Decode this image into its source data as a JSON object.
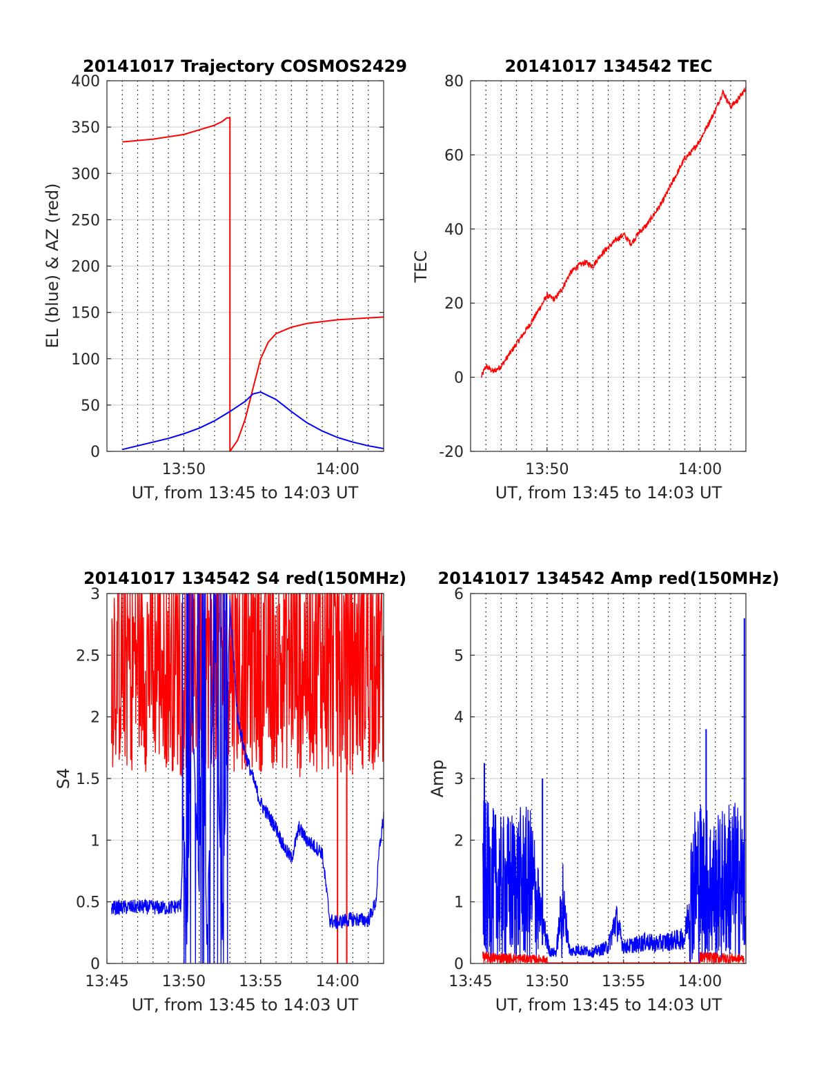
{
  "colors": {
    "red": "#ff0000",
    "blue": "#0000ff",
    "grid": "#dcdcdc",
    "axis": "#262626"
  },
  "chart_data": [
    {
      "type": "line",
      "title": "20141017 Trajectory COSMOS2429",
      "xlabel": "UT, from 13:45 to 14:03 UT",
      "ylabel": "EL (blue) & AZ (red)",
      "xlim_minutes": [
        0,
        18
      ],
      "ylim": [
        0,
        400
      ],
      "yticks": [
        "0",
        "50",
        "100",
        "150",
        "200",
        "250",
        "300",
        "350",
        "400"
      ],
      "xtick_labels": [
        {
          "minute": 5,
          "label": "13:50"
        },
        {
          "minute": 15,
          "label": "14:00"
        }
      ],
      "series": [
        {
          "color": "red",
          "x_minutes": [
            1,
            3,
            5,
            6,
            7,
            7.5,
            7.8,
            8,
            8.5,
            9,
            9.5,
            10,
            10.5,
            11,
            12,
            13,
            14,
            15,
            16,
            17,
            18
          ],
          "values": [
            334,
            337,
            342,
            347,
            352,
            356,
            360,
            0,
            12,
            35,
            68,
            100,
            118,
            127,
            134,
            138,
            140,
            142,
            143,
            144,
            145
          ]
        },
        {
          "color": "blue",
          "x_minutes": [
            1,
            2,
            3,
            4,
            5,
            6,
            7,
            8,
            9,
            9.5,
            10,
            11,
            12,
            13,
            14,
            15,
            16,
            17,
            18
          ],
          "values": [
            2,
            6,
            10,
            14,
            19,
            25,
            33,
            43,
            54,
            62,
            64,
            56,
            43,
            31,
            22,
            15,
            10,
            6,
            3
          ]
        }
      ]
    },
    {
      "type": "line",
      "title": "20141017 134542 TEC",
      "xlabel": "UT, from 13:45 to 14:03 UT",
      "ylabel": "TEC",
      "xlim_minutes": [
        0,
        18
      ],
      "ylim": [
        -20,
        80
      ],
      "yticks": [
        "-20",
        "0",
        "20",
        "40",
        "60",
        "80"
      ],
      "xtick_labels": [
        {
          "minute": 5,
          "label": "13:50"
        },
        {
          "minute": 15,
          "label": "14:00"
        }
      ],
      "series": [
        {
          "color": "red",
          "x_minutes": [
            0.7,
            1.0,
            1.5,
            2.0,
            3.0,
            4.0,
            4.5,
            5.0,
            5.5,
            6.0,
            6.5,
            7.0,
            7.5,
            8.0,
            8.5,
            9.0,
            9.5,
            10.0,
            10.5,
            11.0,
            11.5,
            12.0,
            12.5,
            13.0,
            13.5,
            14.0,
            14.5,
            15.0,
            15.5,
            16.0,
            16.5,
            17.0,
            17.5,
            18.0
          ],
          "values": [
            0,
            3,
            1.5,
            3,
            9,
            15,
            18.5,
            22,
            21,
            24,
            28,
            30,
            31,
            30,
            33,
            35,
            37,
            38.5,
            36,
            39,
            41,
            44,
            47,
            51,
            55,
            59,
            61,
            64,
            68,
            72,
            77,
            73,
            75,
            78
          ]
        }
      ]
    },
    {
      "type": "line",
      "title": "20141017 134542 S4 red(150MHz)",
      "xlabel": "UT, from 13:45 to 14:03 UT",
      "ylabel": "S4",
      "xlim_minutes": [
        0,
        18
      ],
      "ylim": [
        0,
        3
      ],
      "yticks": [
        "0",
        "0.5",
        "1",
        "1.5",
        "2",
        "2.5",
        "3"
      ],
      "xtick_labels": [
        {
          "minute": 0,
          "label": "13:45"
        },
        {
          "minute": 5,
          "label": "13:50"
        },
        {
          "minute": 10,
          "label": "13:55"
        },
        {
          "minute": 15,
          "label": "14:00"
        }
      ],
      "series": [
        {
          "color": "red",
          "x_minutes": [
            0.3,
            18
          ],
          "noisy": true,
          "values": [
            2.6,
            2.6
          ],
          "min": 1.55,
          "max": 3.0
        },
        {
          "color": "blue",
          "x_minutes": [
            0.3,
            2,
            4,
            4.8,
            5.0,
            5.2,
            5.5,
            6.0,
            6.2,
            6.5,
            7.0,
            7.5,
            8.0,
            8.5,
            9.0,
            9.5,
            10.0,
            10.5,
            11.0,
            11.5,
            12.0,
            12.5,
            13.0,
            13.5,
            14.0,
            14.5,
            15.0,
            15.5,
            16.0,
            17.0,
            17.5,
            17.7,
            18.0
          ],
          "values": [
            0.45,
            0.46,
            0.45,
            0.47,
            1.2,
            0.1,
            2.2,
            0.6,
            2.5,
            0.1,
            2.8,
            0.2,
            2.9,
            2.0,
            1.7,
            1.5,
            1.3,
            1.2,
            1.1,
            0.95,
            0.85,
            1.1,
            1.0,
            0.95,
            0.9,
            0.35,
            0.33,
            0.35,
            0.36,
            0.35,
            0.5,
            0.9,
            1.2
          ]
        }
      ]
    },
    {
      "type": "line",
      "title": "20141017 134542 Amp red(150MHz)",
      "xlabel": "UT, from 13:45 to 14:03 UT",
      "ylabel": "Amp",
      "xlim_minutes": [
        0,
        18
      ],
      "ylim": [
        0,
        6
      ],
      "yticks": [
        "0",
        "1",
        "2",
        "3",
        "4",
        "5",
        "6"
      ],
      "xtick_labels": [
        {
          "minute": 0,
          "label": "13:45"
        },
        {
          "minute": 5,
          "label": "13:50"
        },
        {
          "minute": 10,
          "label": "13:55"
        },
        {
          "minute": 15,
          "label": "14:00"
        }
      ],
      "series": [
        {
          "color": "blue",
          "x_minutes": [
            0.8,
            2.0,
            3.0,
            4.0,
            5.2,
            5.6,
            6.0,
            6.5,
            7.0,
            8.0,
            9.0,
            9.5,
            10.0,
            11.0,
            11.5,
            12.0,
            13.0,
            14.0,
            14.5,
            15.0,
            16.0,
            17.0,
            17.8,
            18.0
          ],
          "values": [
            1.6,
            1.4,
            1.5,
            1.5,
            0.2,
            0.2,
            1.2,
            0.2,
            0.25,
            0.2,
            0.3,
            0.8,
            0.3,
            0.35,
            0.4,
            0.35,
            0.4,
            0.45,
            1.5,
            1.6,
            1.4,
            1.6,
            1.5,
            0.5
          ],
          "spikes": [
            {
              "x_minutes": 0.9,
              "value": 3.25
            },
            {
              "x_minutes": 4.7,
              "value": 3.0
            },
            {
              "x_minutes": 15.4,
              "value": 3.8
            },
            {
              "x_minutes": 17.9,
              "value": 5.6
            }
          ]
        },
        {
          "color": "red",
          "x_minutes": [
            0.8,
            5.0,
            15.0,
            17.9
          ],
          "values": [
            0.15,
            0.1,
            0.15,
            0.12
          ]
        }
      ]
    }
  ]
}
